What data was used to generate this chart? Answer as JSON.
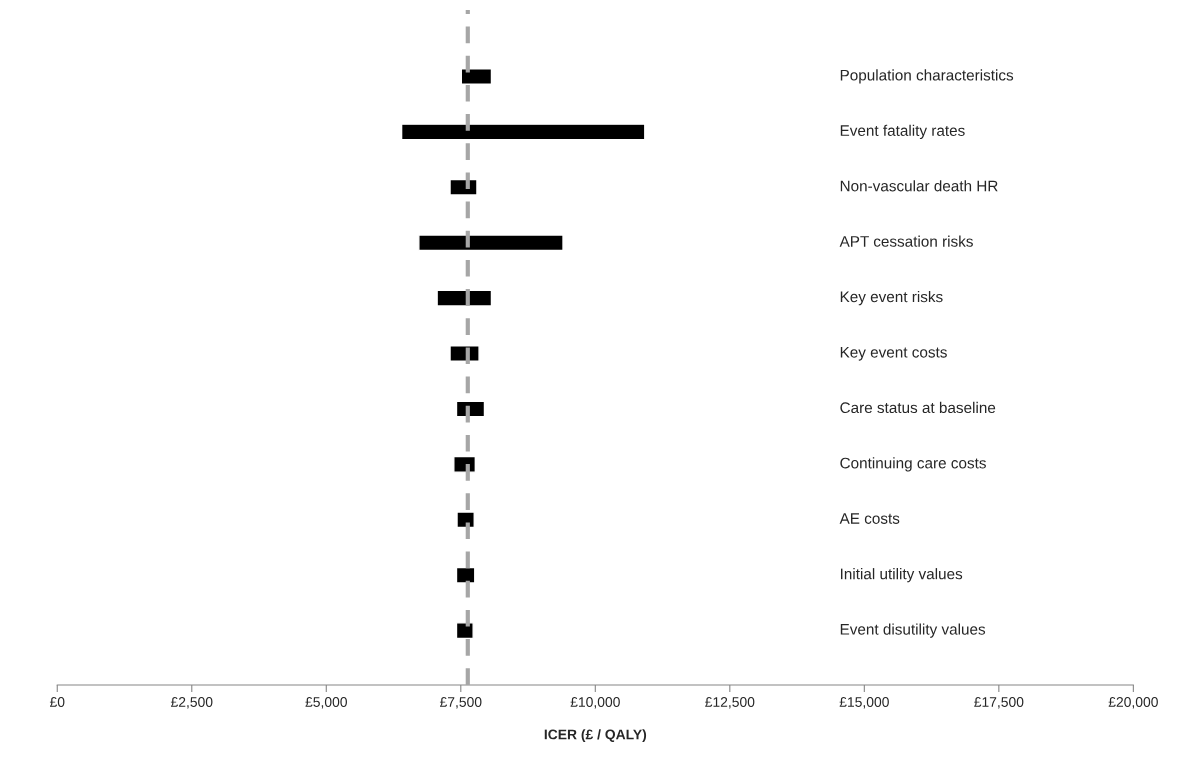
{
  "chart_data": {
    "type": "bar",
    "orientation": "horizontal",
    "xlabel": "ICER (£ / QALY)",
    "categories": [
      "Population characteristics",
      "Event fatality rates",
      "Non-vascular death HR",
      "APT cessation risks",
      "Key event risks",
      "Key event costs",
      "Care status at baseline",
      "Continuing care costs",
      "AE costs",
      "Initial utility values",
      "Event disutility values"
    ],
    "base": [
      7510,
      6400,
      7300,
      6720,
      7060,
      7300,
      7420,
      7370,
      7430,
      7420,
      7420
    ],
    "values": [
      560,
      4520,
      500,
      2680,
      1010,
      540,
      520,
      400,
      320,
      340,
      310
    ],
    "color": "#000000",
    "xlim": [
      0,
      20000
    ],
    "xticks": [
      {
        "value": 0,
        "label": "£0"
      },
      {
        "value": 2500,
        "label": "£2,500"
      },
      {
        "value": 5000,
        "label": "£5,000"
      },
      {
        "value": 7500,
        "label": "£7,500"
      },
      {
        "value": 10000,
        "label": "£10,000"
      },
      {
        "value": 12500,
        "label": "£12,500"
      },
      {
        "value": 15000,
        "label": "£15,000"
      },
      {
        "value": 17500,
        "label": "£17,500"
      },
      {
        "value": 20000,
        "label": "£20,000"
      }
    ],
    "ref_lines": [
      {
        "axis": "x",
        "value": 7630,
        "color": "#a6a6a6",
        "line_style": "dashed"
      }
    ],
    "grid": false,
    "legend": false
  }
}
